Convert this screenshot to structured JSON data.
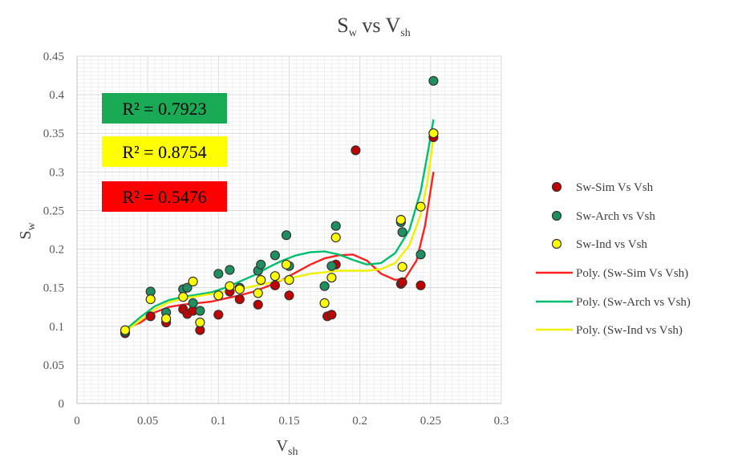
{
  "chart_data": {
    "type": "scatter",
    "title_main": "S",
    "title_main_sub": "w",
    "title_vs": " vs ",
    "title_x": "V",
    "title_x_sub": "sh",
    "xlabel": "V",
    "xlabel_sub": "sh",
    "ylabel": "S",
    "ylabel_sub": "w",
    "xlim": [
      0,
      0.3
    ],
    "ylim": [
      0,
      0.45
    ],
    "x_ticks": [
      "0",
      "0.05",
      "0.1",
      "0.15",
      "0.2",
      "0.25",
      "0.3"
    ],
    "y_ticks": [
      "0",
      "0.05",
      "0.1",
      "0.15",
      "0.2",
      "0.25",
      "0.3",
      "0.35",
      "0.4",
      "0.45"
    ],
    "grid": true,
    "legend_position": "right",
    "series": [
      {
        "name": "Sw-Sim Vs Vsh",
        "color": "#c00000",
        "points": [
          [
            0.034,
            0.091
          ],
          [
            0.052,
            0.113
          ],
          [
            0.063,
            0.105
          ],
          [
            0.075,
            0.122
          ],
          [
            0.078,
            0.116
          ],
          [
            0.082,
            0.12
          ],
          [
            0.087,
            0.095
          ],
          [
            0.1,
            0.115
          ],
          [
            0.108,
            0.145
          ],
          [
            0.115,
            0.135
          ],
          [
            0.128,
            0.128
          ],
          [
            0.14,
            0.153
          ],
          [
            0.15,
            0.14
          ],
          [
            0.177,
            0.113
          ],
          [
            0.18,
            0.115
          ],
          [
            0.183,
            0.18
          ],
          [
            0.197,
            0.328
          ],
          [
            0.229,
            0.155
          ],
          [
            0.23,
            0.157
          ],
          [
            0.243,
            0.153
          ],
          [
            0.252,
            0.345
          ]
        ]
      },
      {
        "name": "Sw-Arch vs Vsh",
        "color": "#1f8f5f",
        "points": [
          [
            0.034,
            0.093
          ],
          [
            0.052,
            0.145
          ],
          [
            0.063,
            0.118
          ],
          [
            0.075,
            0.148
          ],
          [
            0.078,
            0.15
          ],
          [
            0.082,
            0.13
          ],
          [
            0.087,
            0.12
          ],
          [
            0.1,
            0.168
          ],
          [
            0.108,
            0.173
          ],
          [
            0.115,
            0.15
          ],
          [
            0.128,
            0.172
          ],
          [
            0.13,
            0.18
          ],
          [
            0.14,
            0.192
          ],
          [
            0.148,
            0.218
          ],
          [
            0.15,
            0.178
          ],
          [
            0.175,
            0.152
          ],
          [
            0.18,
            0.178
          ],
          [
            0.183,
            0.23
          ],
          [
            0.229,
            0.235
          ],
          [
            0.23,
            0.222
          ],
          [
            0.243,
            0.193
          ],
          [
            0.252,
            0.418
          ],
          [
            0.252,
            0.35
          ]
        ]
      },
      {
        "name": "Sw-Ind vs Vsh",
        "color": "#ffff00",
        "points": [
          [
            0.034,
            0.095
          ],
          [
            0.052,
            0.135
          ],
          [
            0.063,
            0.11
          ],
          [
            0.075,
            0.138
          ],
          [
            0.082,
            0.158
          ],
          [
            0.087,
            0.105
          ],
          [
            0.1,
            0.14
          ],
          [
            0.108,
            0.152
          ],
          [
            0.115,
            0.148
          ],
          [
            0.128,
            0.143
          ],
          [
            0.13,
            0.16
          ],
          [
            0.14,
            0.165
          ],
          [
            0.148,
            0.18
          ],
          [
            0.15,
            0.16
          ],
          [
            0.175,
            0.13
          ],
          [
            0.18,
            0.163
          ],
          [
            0.183,
            0.215
          ],
          [
            0.229,
            0.238
          ],
          [
            0.23,
            0.177
          ],
          [
            0.243,
            0.255
          ],
          [
            0.252,
            0.35
          ]
        ]
      }
    ],
    "trendlines": [
      {
        "name": "Poly. (Sw-Sim Vs Vsh)",
        "color": "#ff2020",
        "points": [
          [
            0.034,
            0.097
          ],
          [
            0.045,
            0.105
          ],
          [
            0.055,
            0.118
          ],
          [
            0.065,
            0.125
          ],
          [
            0.075,
            0.128
          ],
          [
            0.085,
            0.13
          ],
          [
            0.095,
            0.132
          ],
          [
            0.105,
            0.136
          ],
          [
            0.115,
            0.14
          ],
          [
            0.125,
            0.145
          ],
          [
            0.135,
            0.152
          ],
          [
            0.145,
            0.16
          ],
          [
            0.155,
            0.17
          ],
          [
            0.165,
            0.18
          ],
          [
            0.175,
            0.188
          ],
          [
            0.185,
            0.192
          ],
          [
            0.195,
            0.193
          ],
          [
            0.205,
            0.185
          ],
          [
            0.215,
            0.168
          ],
          [
            0.225,
            0.16
          ],
          [
            0.232,
            0.162
          ],
          [
            0.24,
            0.185
          ],
          [
            0.246,
            0.23
          ],
          [
            0.252,
            0.3
          ]
        ]
      },
      {
        "name": "Poly. (Sw-Arch vs Vsh)",
        "color": "#00c070",
        "points": [
          [
            0.034,
            0.095
          ],
          [
            0.045,
            0.112
          ],
          [
            0.055,
            0.126
          ],
          [
            0.065,
            0.134
          ],
          [
            0.075,
            0.138
          ],
          [
            0.085,
            0.141
          ],
          [
            0.095,
            0.144
          ],
          [
            0.105,
            0.15
          ],
          [
            0.115,
            0.158
          ],
          [
            0.125,
            0.166
          ],
          [
            0.135,
            0.176
          ],
          [
            0.145,
            0.185
          ],
          [
            0.155,
            0.192
          ],
          [
            0.165,
            0.196
          ],
          [
            0.175,
            0.197
          ],
          [
            0.185,
            0.193
          ],
          [
            0.195,
            0.186
          ],
          [
            0.205,
            0.18
          ],
          [
            0.215,
            0.182
          ],
          [
            0.225,
            0.195
          ],
          [
            0.235,
            0.225
          ],
          [
            0.243,
            0.275
          ],
          [
            0.248,
            0.325
          ],
          [
            0.252,
            0.368
          ]
        ]
      },
      {
        "name": "Poly. (Sw-Ind vs Vsh)",
        "color": "#f0f000",
        "points": [
          [
            0.034,
            0.093
          ],
          [
            0.045,
            0.108
          ],
          [
            0.055,
            0.122
          ],
          [
            0.065,
            0.131
          ],
          [
            0.075,
            0.136
          ],
          [
            0.085,
            0.139
          ],
          [
            0.095,
            0.142
          ],
          [
            0.105,
            0.145
          ],
          [
            0.115,
            0.148
          ],
          [
            0.125,
            0.152
          ],
          [
            0.135,
            0.156
          ],
          [
            0.145,
            0.16
          ],
          [
            0.155,
            0.164
          ],
          [
            0.165,
            0.168
          ],
          [
            0.175,
            0.17
          ],
          [
            0.185,
            0.172
          ],
          [
            0.195,
            0.172
          ],
          [
            0.205,
            0.172
          ],
          [
            0.215,
            0.174
          ],
          [
            0.225,
            0.182
          ],
          [
            0.235,
            0.205
          ],
          [
            0.243,
            0.245
          ],
          [
            0.248,
            0.29
          ],
          [
            0.252,
            0.345
          ]
        ]
      }
    ],
    "annotations": [
      {
        "text": "R² = 0.7923",
        "background": "#1aaa55",
        "text_color": "#000000"
      },
      {
        "text": "R² = 0.8754",
        "background": "#ffff00",
        "text_color": "#000000"
      },
      {
        "text": "R² = 0.5476",
        "background": "#ff0000",
        "text_color": "#000000"
      }
    ]
  }
}
